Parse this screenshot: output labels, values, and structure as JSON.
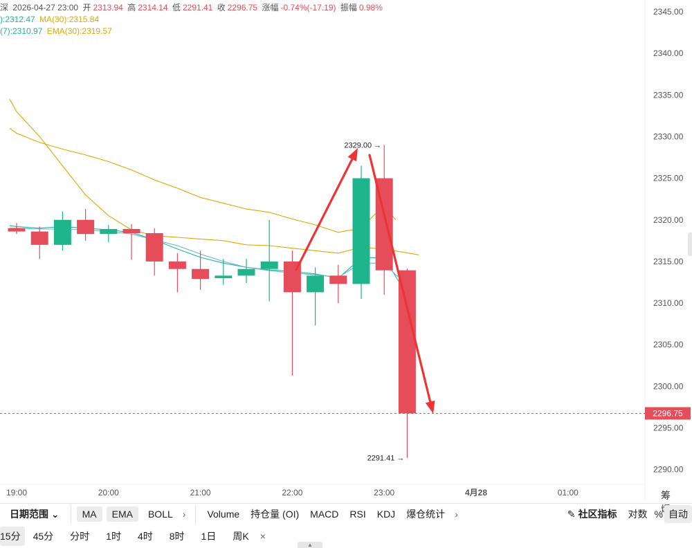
{
  "info": {
    "title_fragment": "深",
    "datetime": "2026-04-27 23:00",
    "open_label": "开",
    "open": "2313.94",
    "high_label": "高",
    "high": "2314.14",
    "low_label": "低",
    "low": "2291.41",
    "close_label": "收",
    "close": "2296.75",
    "change_label": "涨幅",
    "change": "-0.74%(-17.19)",
    "amplitude_label": "振幅",
    "amplitude": "0.98%",
    "ma_a": "):2312.47",
    "ma30": "MA(30):2315.84",
    "ema7": "(7):2310.97",
    "ema30": "EMA(30):2319.57"
  },
  "chart_data": {
    "type": "candlestick",
    "y_axis": {
      "min": 2288,
      "max": 2347,
      "ticks": [
        2345,
        2340,
        2335,
        2330,
        2325,
        2320,
        2315,
        2310,
        2305,
        2300,
        2295,
        2290
      ],
      "tick_labels": [
        "2345.00",
        "2340.00",
        "2335.00",
        "2330.00",
        "2325.00",
        "2320.00",
        "2315.00",
        "2310.00",
        "2305.00",
        "2300.00",
        "2295.00",
        "2290.00"
      ]
    },
    "x_axis": {
      "ticks": [
        {
          "label": "19:00",
          "idx": 0,
          "bold": false
        },
        {
          "label": "20:00",
          "idx": 4,
          "bold": false
        },
        {
          "label": "21:00",
          "idx": 8,
          "bold": false
        },
        {
          "label": "22:00",
          "idx": 12,
          "bold": false
        },
        {
          "label": "23:00",
          "idx": 16,
          "bold": false
        },
        {
          "label": "4月28",
          "idx": 20,
          "bold": true
        },
        {
          "label": "01:00",
          "idx": 24,
          "bold": false
        }
      ]
    },
    "candles": [
      {
        "o": 2319.0,
        "h": 2319.6,
        "l": 2318.3,
        "c": 2318.6
      },
      {
        "o": 2318.6,
        "h": 2319.2,
        "l": 2315.3,
        "c": 2317.0
      },
      {
        "o": 2317.0,
        "h": 2321.0,
        "l": 2316.3,
        "c": 2320.0
      },
      {
        "o": 2320.0,
        "h": 2321.3,
        "l": 2317.5,
        "c": 2318.3
      },
      {
        "o": 2318.3,
        "h": 2319.4,
        "l": 2317.3,
        "c": 2318.9
      },
      {
        "o": 2318.9,
        "h": 2319.5,
        "l": 2315.2,
        "c": 2318.4
      },
      {
        "o": 2318.4,
        "h": 2319.0,
        "l": 2313.3,
        "c": 2315.0
      },
      {
        "o": 2315.0,
        "h": 2316.0,
        "l": 2311.3,
        "c": 2314.1
      },
      {
        "o": 2314.1,
        "h": 2316.3,
        "l": 2311.6,
        "c": 2312.9
      },
      {
        "o": 2313.0,
        "h": 2315.3,
        "l": 2312.2,
        "c": 2313.3
      },
      {
        "o": 2313.3,
        "h": 2315.3,
        "l": 2312.4,
        "c": 2314.1
      },
      {
        "o": 2314.1,
        "h": 2320.0,
        "l": 2310.2,
        "c": 2315.0
      },
      {
        "o": 2315.0,
        "h": 2316.3,
        "l": 2301.3,
        "c": 2311.3
      },
      {
        "o": 2311.3,
        "h": 2314.3,
        "l": 2307.3,
        "c": 2313.3
      },
      {
        "o": 2313.3,
        "h": 2314.6,
        "l": 2310.0,
        "c": 2312.3
      },
      {
        "o": 2312.3,
        "h": 2326.5,
        "l": 2310.5,
        "c": 2325.0
      },
      {
        "o": 2325.0,
        "h": 2329.0,
        "l": 2311.0,
        "c": 2313.94
      },
      {
        "o": 2313.94,
        "h": 2314.14,
        "l": 2291.41,
        "c": 2296.75
      }
    ],
    "ma_lines": [
      {
        "name": "EMA(30)",
        "color": "#e0a800",
        "points": [
          [
            -0.3,
            2331.0
          ],
          [
            0,
            2330.4
          ],
          [
            1,
            2329.3
          ],
          [
            2,
            2328.5
          ],
          [
            3,
            2327.8
          ],
          [
            4,
            2327.0
          ],
          [
            5,
            2326.0
          ],
          [
            6,
            2324.8
          ],
          [
            7,
            2323.8
          ],
          [
            8,
            2322.7
          ],
          [
            9,
            2322.0
          ],
          [
            10,
            2321.3
          ],
          [
            11,
            2320.9
          ],
          [
            12,
            2320.1
          ],
          [
            13,
            2319.4
          ],
          [
            14,
            2318.5
          ],
          [
            15,
            2319.0
          ],
          [
            16,
            2321.8
          ],
          [
            16.5,
            2320.0
          ]
        ]
      },
      {
        "name": "MA(30)",
        "color": "#e0a800",
        "points": [
          [
            -0.3,
            2334.5
          ],
          [
            0,
            2333.0
          ],
          [
            1,
            2330.0
          ],
          [
            2,
            2326.5
          ],
          [
            3,
            2323.0
          ],
          [
            4,
            2320.5
          ],
          [
            5,
            2318.8
          ],
          [
            6,
            2318.1
          ],
          [
            7,
            2317.9
          ],
          [
            8,
            2317.7
          ],
          [
            9,
            2317.5
          ],
          [
            10,
            2317.0
          ],
          [
            11,
            2316.9
          ],
          [
            12,
            2316.6
          ],
          [
            13,
            2316.3
          ],
          [
            14,
            2316.0
          ],
          [
            15,
            2316.7
          ],
          [
            16,
            2316.5
          ],
          [
            17.5,
            2315.8
          ]
        ]
      },
      {
        "name": "EMA(7)",
        "color": "#1fb4a5",
        "points": [
          [
            -0.3,
            2319.3
          ],
          [
            0,
            2319.2
          ],
          [
            1,
            2319.0
          ],
          [
            2,
            2319.2
          ],
          [
            3,
            2319.0
          ],
          [
            4,
            2318.8
          ],
          [
            5,
            2318.5
          ],
          [
            6,
            2317.6
          ],
          [
            7,
            2316.5
          ],
          [
            8,
            2315.5
          ],
          [
            9,
            2314.8
          ],
          [
            10,
            2314.3
          ],
          [
            11,
            2314.0
          ],
          [
            12,
            2313.8
          ],
          [
            13,
            2313.5
          ],
          [
            14,
            2313.0
          ],
          [
            15,
            2315.4
          ],
          [
            16,
            2315.5
          ],
          [
            16.5,
            2313.2
          ],
          [
            17,
            2311.0
          ]
        ]
      },
      {
        "name": "MA(7)",
        "color": "#6bb6c9",
        "points": [
          [
            -0.3,
            2319.0
          ],
          [
            0,
            2319.0
          ],
          [
            1,
            2318.9
          ],
          [
            2,
            2318.9
          ],
          [
            3,
            2318.8
          ],
          [
            4,
            2318.6
          ],
          [
            5,
            2318.3
          ],
          [
            6,
            2317.6
          ],
          [
            7,
            2316.9
          ],
          [
            8,
            2315.9
          ],
          [
            9,
            2315.0
          ],
          [
            10,
            2314.3
          ],
          [
            11,
            2313.9
          ],
          [
            12,
            2313.6
          ],
          [
            13,
            2313.4
          ],
          [
            14,
            2313.1
          ],
          [
            15,
            2314.8
          ],
          [
            16,
            2314.8
          ],
          [
            16.5,
            2313.4
          ],
          [
            17,
            2312.4
          ]
        ]
      }
    ],
    "annotations": {
      "high_label": "2329.00 →",
      "low_label": "2291.41 →",
      "last_price": "2296.75"
    },
    "colors": {
      "up": "#1fb48b",
      "down": "#e54d5a",
      "arrow": "#ee3333"
    }
  },
  "toolbar": {
    "date_range": "日期范围",
    "ma": "MA",
    "ema": "EMA",
    "boll": "BOLL",
    "volume": "Volume",
    "oi": "持仓量 (OI)",
    "macd": "MACD",
    "rsi": "RSI",
    "kdj": "KDJ",
    "liq": "爆仓统计",
    "community": "社区指标",
    "log": "对数",
    "pct": "%",
    "auto": "自动"
  },
  "periods": {
    "p15": "15分",
    "p45": "45分",
    "fenshi": "分时",
    "h1": "1时",
    "h4": "4时",
    "h8": "8时",
    "d1": "1日",
    "week": "周K",
    "close": "×"
  },
  "corner": "筹 爆"
}
